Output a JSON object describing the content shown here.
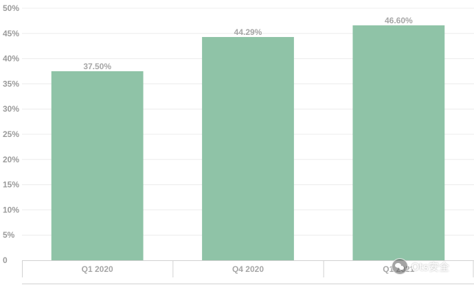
{
  "chart_data": {
    "type": "bar",
    "categories": [
      "Q1 2020",
      "Q4 2020",
      "Q1 2021"
    ],
    "values": [
      37.5,
      44.29,
      46.6
    ],
    "value_labels": [
      "37.50%",
      "44.29%",
      "46.60%"
    ],
    "ylim": [
      0,
      50
    ],
    "yticks": [
      0,
      5,
      10,
      15,
      20,
      25,
      30,
      35,
      40,
      45,
      50
    ],
    "ytick_labels": [
      "0",
      "5%",
      "10%",
      "15%",
      "20%",
      "25%",
      "30%",
      "35%",
      "40%",
      "45%",
      "50%"
    ],
    "grid": true,
    "bar_color": "#8fc3a7",
    "title": "",
    "xlabel": "",
    "ylabel": ""
  },
  "watermark": {
    "text": "Ots安全",
    "icon": "wechat-icon"
  }
}
